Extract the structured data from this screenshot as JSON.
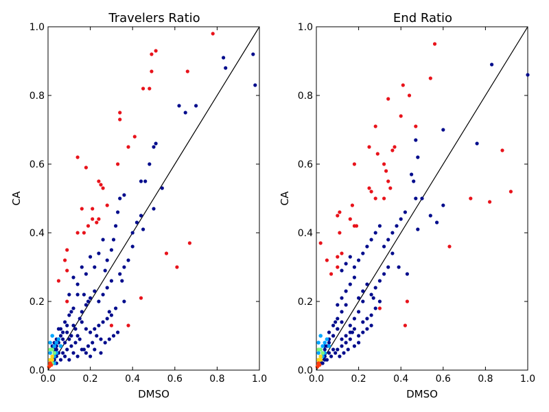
{
  "chart_data": [
    {
      "type": "scatter",
      "title": "Travelers Ratio",
      "xlabel": "DMSO",
      "ylabel": "CA",
      "xlim": [
        0,
        1
      ],
      "ylim": [
        0,
        1
      ],
      "xticks": [
        "0.0",
        "0.2",
        "0.4",
        "0.6",
        "0.8",
        "1.0"
      ],
      "yticks": [
        "0.0",
        "0.2",
        "0.4",
        "0.6",
        "0.8",
        "1.0"
      ],
      "grid": false,
      "diagonal_line": true,
      "density_colormap": "jet",
      "series": [
        {
          "color": "#e8131b",
          "x": [
            0.78,
            0.51,
            0.49,
            0.49,
            0.45,
            0.48,
            0.66,
            0.34,
            0.34,
            0.41,
            0.38,
            0.33,
            0.14,
            0.18,
            0.24,
            0.25,
            0.26,
            0.21,
            0.28,
            0.16,
            0.21,
            0.24,
            0.23,
            0.19,
            0.14,
            0.17,
            0.09,
            0.08,
            0.05,
            0.09,
            0.67,
            0.56,
            0.61,
            0.44,
            0.3,
            0.38,
            0.09
          ],
          "y": [
            0.98,
            0.93,
            0.92,
            0.87,
            0.82,
            0.82,
            0.87,
            0.75,
            0.73,
            0.68,
            0.65,
            0.6,
            0.62,
            0.59,
            0.55,
            0.54,
            0.53,
            0.47,
            0.48,
            0.47,
            0.44,
            0.44,
            0.43,
            0.42,
            0.4,
            0.4,
            0.35,
            0.32,
            0.26,
            0.29,
            0.37,
            0.34,
            0.3,
            0.21,
            0.13,
            0.13,
            0.2
          ]
        },
        {
          "color": "#000c8c",
          "x": [
            0.83,
            0.84,
            0.97,
            0.98,
            0.62,
            0.65,
            0.7,
            0.51,
            0.5,
            0.48,
            0.44,
            0.46,
            0.54,
            0.5,
            0.44,
            0.42,
            0.4,
            0.36,
            0.34,
            0.33,
            0.32,
            0.31,
            0.3,
            0.28,
            0.26,
            0.24,
            0.22,
            0.2,
            0.18,
            0.16,
            0.14,
            0.12,
            0.1,
            0.4,
            0.38,
            0.36,
            0.34,
            0.3,
            0.28,
            0.26,
            0.24,
            0.22,
            0.2,
            0.18,
            0.16,
            0.14,
            0.12,
            0.1,
            0.08,
            0.06,
            0.36,
            0.32,
            0.3,
            0.28,
            0.26,
            0.24,
            0.22,
            0.2,
            0.18,
            0.16,
            0.14,
            0.12,
            0.1,
            0.08,
            0.06,
            0.04,
            0.33,
            0.31,
            0.29,
            0.27,
            0.25,
            0.23,
            0.21,
            0.19,
            0.17,
            0.15,
            0.13,
            0.11,
            0.09,
            0.07,
            0.05,
            0.04,
            0.03,
            0.02,
            0.25,
            0.22,
            0.2,
            0.18,
            0.16,
            0.14,
            0.12,
            0.1,
            0.08,
            0.06,
            0.04,
            0.03,
            0.02,
            0.01,
            0.15,
            0.13,
            0.11,
            0.09,
            0.07,
            0.05,
            0.04,
            0.03,
            0.02,
            0.01,
            0.11,
            0.09,
            0.07,
            0.06,
            0.05,
            0.04,
            0.03,
            0.02,
            0.45,
            0.35,
            0.27,
            0.19,
            0.29,
            0.17
          ],
          "y": [
            0.91,
            0.88,
            0.92,
            0.83,
            0.77,
            0.75,
            0.77,
            0.66,
            0.65,
            0.6,
            0.55,
            0.55,
            0.53,
            0.47,
            0.45,
            0.43,
            0.4,
            0.51,
            0.5,
            0.46,
            0.42,
            0.38,
            0.35,
            0.32,
            0.38,
            0.34,
            0.3,
            0.33,
            0.28,
            0.3,
            0.25,
            0.27,
            0.22,
            0.36,
            0.32,
            0.3,
            0.28,
            0.26,
            0.24,
            0.22,
            0.2,
            0.23,
            0.21,
            0.19,
            0.17,
            0.22,
            0.18,
            0.16,
            0.14,
            0.12,
            0.2,
            0.18,
            0.16,
            0.15,
            0.14,
            0.13,
            0.12,
            0.11,
            0.12,
            0.14,
            0.1,
            0.13,
            0.09,
            0.08,
            0.07,
            0.06,
            0.11,
            0.1,
            0.09,
            0.08,
            0.09,
            0.1,
            0.08,
            0.07,
            0.06,
            0.09,
            0.08,
            0.07,
            0.06,
            0.05,
            0.05,
            0.04,
            0.03,
            0.03,
            0.05,
            0.06,
            0.04,
            0.05,
            0.06,
            0.04,
            0.05,
            0.03,
            0.04,
            0.03,
            0.02,
            0.06,
            0.04,
            0.02,
            0.15,
            0.12,
            0.1,
            0.11,
            0.09,
            0.08,
            0.07,
            0.05,
            0.04,
            0.03,
            0.17,
            0.13,
            0.11,
            0.1,
            0.12,
            0.09,
            0.08,
            0.07,
            0.41,
            0.26,
            0.29,
            0.2,
            0.17,
            0.22
          ]
        },
        {
          "color": "#00a6ff",
          "x": [
            0.01,
            0.02,
            0.03,
            0.04,
            0.05,
            0.02,
            0.03,
            0.01,
            0.04,
            0.06,
            0.02,
            0.03
          ],
          "y": [
            0.05,
            0.06,
            0.07,
            0.08,
            0.09,
            0.03,
            0.04,
            0.08,
            0.05,
            0.07,
            0.1,
            0.02
          ]
        },
        {
          "color": "#7ef57a",
          "x": [
            0.01,
            0.02,
            0.02,
            0.03,
            0.01,
            0.02
          ],
          "y": [
            0.03,
            0.04,
            0.06,
            0.05,
            0.06,
            0.02
          ]
        },
        {
          "color": "#ffd21a",
          "x": [
            0.01,
            0.01,
            0.02,
            0.02
          ],
          "y": [
            0.02,
            0.03,
            0.03,
            0.04
          ]
        },
        {
          "color": "#ff3b0f",
          "x": [
            0.005,
            0.01,
            0.015
          ],
          "y": [
            0.01,
            0.02,
            0.015
          ]
        }
      ]
    },
    {
      "type": "scatter",
      "title": "End Ratio",
      "xlabel": "DMSO",
      "ylabel": "CA",
      "xlim": [
        0,
        1
      ],
      "ylim": [
        0,
        1
      ],
      "xticks": [
        "0.0",
        "0.2",
        "0.4",
        "0.6",
        "0.8",
        "1.0"
      ],
      "yticks": [
        "0.0",
        "0.2",
        "0.4",
        "0.6",
        "0.8",
        "1.0"
      ],
      "grid": false,
      "diagonal_line": true,
      "density_colormap": "jet",
      "series": [
        {
          "color": "#e8131b",
          "x": [
            0.56,
            0.54,
            0.41,
            0.44,
            0.34,
            0.4,
            0.47,
            0.28,
            0.25,
            0.29,
            0.32,
            0.36,
            0.37,
            0.33,
            0.18,
            0.34,
            0.35,
            0.25,
            0.26,
            0.28,
            0.32,
            0.17,
            0.16,
            0.18,
            0.19,
            0.11,
            0.1,
            0.11,
            0.1,
            0.12,
            0.02,
            0.05,
            0.07,
            0.1,
            0.73,
            0.82,
            0.88,
            0.92,
            0.63,
            0.43,
            0.42,
            0.3
          ],
          "y": [
            0.95,
            0.85,
            0.83,
            0.8,
            0.79,
            0.74,
            0.71,
            0.71,
            0.65,
            0.63,
            0.6,
            0.64,
            0.65,
            0.58,
            0.6,
            0.55,
            0.53,
            0.53,
            0.52,
            0.5,
            0.5,
            0.48,
            0.44,
            0.42,
            0.42,
            0.46,
            0.45,
            0.4,
            0.33,
            0.34,
            0.37,
            0.32,
            0.28,
            0.3,
            0.5,
            0.49,
            0.64,
            0.52,
            0.36,
            0.2,
            0.13,
            0.18
          ]
        },
        {
          "color": "#000c8c",
          "x": [
            0.83,
            1.0,
            0.76,
            0.6,
            0.47,
            0.48,
            0.45,
            0.46,
            0.5,
            0.48,
            0.54,
            0.57,
            0.6,
            0.47,
            0.42,
            0.4,
            0.38,
            0.36,
            0.34,
            0.32,
            0.3,
            0.28,
            0.26,
            0.24,
            0.22,
            0.2,
            0.18,
            0.16,
            0.14,
            0.12,
            0.36,
            0.34,
            0.32,
            0.3,
            0.28,
            0.26,
            0.24,
            0.22,
            0.2,
            0.18,
            0.16,
            0.14,
            0.12,
            0.1,
            0.3,
            0.28,
            0.26,
            0.24,
            0.22,
            0.2,
            0.18,
            0.16,
            0.14,
            0.12,
            0.1,
            0.08,
            0.06,
            0.26,
            0.24,
            0.22,
            0.2,
            0.18,
            0.16,
            0.14,
            0.12,
            0.1,
            0.08,
            0.06,
            0.04,
            0.2,
            0.18,
            0.16,
            0.14,
            0.12,
            0.1,
            0.08,
            0.06,
            0.04,
            0.03,
            0.02,
            0.15,
            0.13,
            0.11,
            0.09,
            0.07,
            0.05,
            0.04,
            0.03,
            0.02,
            0.12,
            0.1,
            0.08,
            0.06,
            0.05,
            0.04,
            0.03,
            0.02,
            0.01,
            0.43,
            0.39,
            0.27,
            0.22,
            0.17,
            0.09
          ],
          "y": [
            0.89,
            0.86,
            0.66,
            0.7,
            0.67,
            0.62,
            0.57,
            0.55,
            0.5,
            0.41,
            0.45,
            0.43,
            0.48,
            0.5,
            0.46,
            0.44,
            0.42,
            0.4,
            0.38,
            0.36,
            0.42,
            0.4,
            0.38,
            0.36,
            0.34,
            0.32,
            0.3,
            0.33,
            0.31,
            0.29,
            0.34,
            0.3,
            0.28,
            0.26,
            0.24,
            0.22,
            0.25,
            0.23,
            0.21,
            0.27,
            0.25,
            0.23,
            0.21,
            0.19,
            0.2,
            0.18,
            0.16,
            0.15,
            0.14,
            0.17,
            0.15,
            0.13,
            0.19,
            0.17,
            0.15,
            0.13,
            0.11,
            0.13,
            0.12,
            0.11,
            0.1,
            0.12,
            0.11,
            0.1,
            0.09,
            0.12,
            0.1,
            0.08,
            0.07,
            0.08,
            0.07,
            0.09,
            0.08,
            0.07,
            0.06,
            0.06,
            0.05,
            0.04,
            0.05,
            0.04,
            0.06,
            0.05,
            0.04,
            0.05,
            0.04,
            0.03,
            0.03,
            0.02,
            0.02,
            0.14,
            0.12,
            0.1,
            0.09,
            0.07,
            0.06,
            0.05,
            0.04,
            0.03,
            0.28,
            0.3,
            0.21,
            0.2,
            0.11,
            0.14
          ]
        },
        {
          "color": "#00a6ff",
          "x": [
            0.01,
            0.02,
            0.03,
            0.04,
            0.05,
            0.02,
            0.03,
            0.01,
            0.04,
            0.06,
            0.02
          ],
          "y": [
            0.05,
            0.06,
            0.07,
            0.08,
            0.09,
            0.03,
            0.04,
            0.08,
            0.05,
            0.07,
            0.1
          ]
        },
        {
          "color": "#7ef57a",
          "x": [
            0.01,
            0.02,
            0.02,
            0.03,
            0.01
          ],
          "y": [
            0.03,
            0.04,
            0.06,
            0.05,
            0.06
          ]
        },
        {
          "color": "#ffd21a",
          "x": [
            0.01,
            0.01,
            0.02,
            0.02
          ],
          "y": [
            0.02,
            0.03,
            0.03,
            0.04
          ]
        },
        {
          "color": "#ff3b0f",
          "x": [
            0.005,
            0.01,
            0.015
          ],
          "y": [
            0.01,
            0.02,
            0.015
          ]
        }
      ]
    }
  ]
}
